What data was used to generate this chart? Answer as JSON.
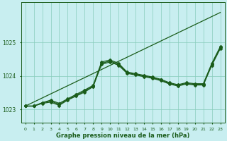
{
  "bg_color": "#c8eef0",
  "grid_color": "#88ccbb",
  "line_color_dark": "#1a5c1a",
  "xlabel": "Graphe pression niveau de la mer (hPa)",
  "yticks": [
    1023,
    1024,
    1025
  ],
  "xlim": [
    -0.5,
    23.5
  ],
  "ylim": [
    1022.6,
    1026.2
  ],
  "series_linear": {
    "x": [
      0,
      23
    ],
    "y": [
      1023.1,
      1025.9
    ]
  },
  "series_a": {
    "x": [
      0,
      1,
      2,
      3,
      4,
      5,
      6,
      7,
      8,
      9,
      10,
      11,
      12,
      13,
      14,
      15,
      16,
      17,
      18,
      19,
      20,
      21,
      22,
      23
    ],
    "y": [
      1023.1,
      1023.1,
      1023.2,
      1023.25,
      1023.15,
      1023.3,
      1023.42,
      1023.55,
      1023.7,
      1024.38,
      1024.45,
      1024.35,
      1024.1,
      1024.05,
      1024.0,
      1023.95,
      1023.88,
      1023.78,
      1023.72,
      1023.78,
      1023.75,
      1023.75,
      1024.35,
      1024.85
    ]
  },
  "series_b": {
    "x": [
      0,
      1,
      2,
      3,
      4,
      5,
      6,
      7,
      8,
      9,
      10,
      11,
      12,
      13,
      14,
      15,
      16,
      17,
      18,
      19,
      20,
      21,
      22,
      23
    ],
    "y": [
      1023.1,
      1023.1,
      1023.2,
      1023.28,
      1023.18,
      1023.32,
      1023.45,
      1023.58,
      1023.72,
      1024.42,
      1024.48,
      1024.38,
      1024.12,
      1024.07,
      1024.02,
      1023.97,
      1023.9,
      1023.8,
      1023.74,
      1023.8,
      1023.77,
      1023.77,
      1024.38,
      1024.88
    ]
  },
  "series_c": {
    "x": [
      0,
      1,
      2,
      3,
      4,
      5,
      6,
      7,
      8,
      9,
      10,
      11,
      12,
      13,
      14,
      15,
      16,
      17,
      18,
      19,
      20,
      21,
      22,
      23
    ],
    "y": [
      1023.1,
      1023.1,
      1023.18,
      1023.22,
      1023.12,
      1023.28,
      1023.4,
      1023.52,
      1023.68,
      1024.35,
      1024.42,
      1024.32,
      1024.08,
      1024.03,
      1023.98,
      1023.93,
      1023.86,
      1023.76,
      1023.7,
      1023.76,
      1023.73,
      1023.73,
      1024.32,
      1024.82
    ]
  }
}
